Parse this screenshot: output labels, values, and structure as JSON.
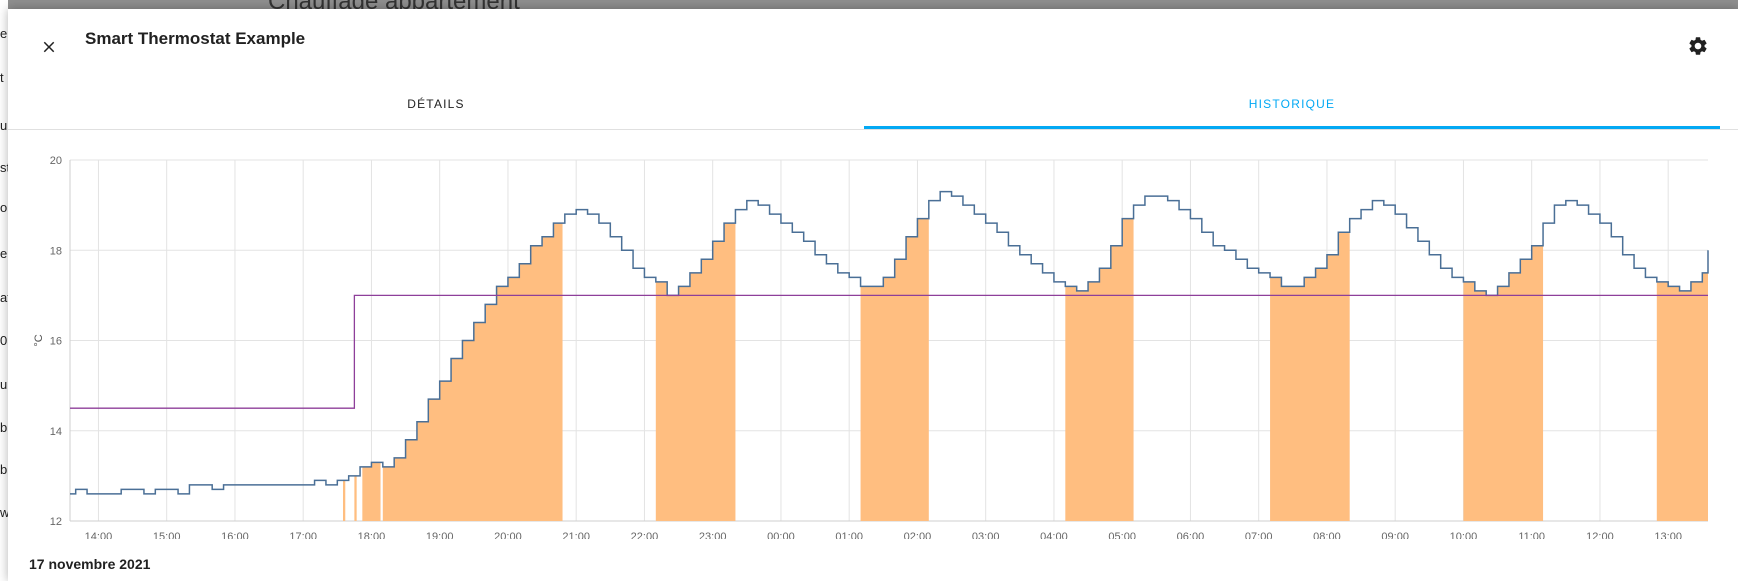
{
  "background": {
    "title": "Chauffage appartement",
    "edge_letters": [
      "e",
      "t",
      "u",
      "st",
      "o",
      "e",
      "at",
      "0",
      "u",
      "b",
      "b",
      "w"
    ]
  },
  "dialog": {
    "title": "Smart Thermostat Example",
    "close_icon": "close-icon",
    "settings_icon": "gear-icon"
  },
  "tabs": [
    {
      "label": "DÉTAILS",
      "active": false
    },
    {
      "label": "HISTORIQUE",
      "active": true
    }
  ],
  "date_label": "17 novembre 2021",
  "colors": {
    "current_temp": "#4a6f96",
    "target_temp": "#8e3f9a",
    "heating": "#ffbe80",
    "accent": "#03a9f4"
  },
  "chart_data": {
    "type": "line",
    "ylabel": "°C",
    "ylim": [
      12,
      20
    ],
    "yticks": [
      12,
      14,
      16,
      18,
      20
    ],
    "x_start": "13:35",
    "x_end": "13:35",
    "xlabels": [
      "14:00",
      "15:00",
      "16:00",
      "17:00",
      "18:00",
      "19:00",
      "20:00",
      "21:00",
      "22:00",
      "23:00",
      "00:00",
      "01:00",
      "02:00",
      "03:00",
      "04:00",
      "05:00",
      "06:00",
      "07:00",
      "08:00",
      "09:00",
      "10:00",
      "11:00",
      "12:00",
      "13:00"
    ],
    "grid": true,
    "series": [
      {
        "type": "line",
        "points": [
          [
            "13:35",
            12.6
          ],
          [
            "13:40",
            12.7
          ],
          [
            "13:50",
            12.6
          ],
          [
            "14:20",
            12.7
          ],
          [
            "14:40",
            12.6
          ],
          [
            "14:50",
            12.7
          ],
          [
            "15:10",
            12.6
          ],
          [
            "15:20",
            12.8
          ],
          [
            "15:40",
            12.7
          ],
          [
            "15:50",
            12.8
          ],
          [
            "17:10",
            12.9
          ],
          [
            "17:20",
            12.8
          ],
          [
            "17:30",
            12.9
          ],
          [
            "17:40",
            13.0
          ],
          [
            "17:50",
            13.2
          ],
          [
            "18:00",
            13.3
          ],
          [
            "18:10",
            13.2
          ],
          [
            "18:20",
            13.4
          ],
          [
            "18:30",
            13.8
          ],
          [
            "18:40",
            14.2
          ],
          [
            "18:50",
            14.7
          ],
          [
            "19:00",
            15.1
          ],
          [
            "19:10",
            15.6
          ],
          [
            "19:20",
            16.0
          ],
          [
            "19:30",
            16.4
          ],
          [
            "19:40",
            16.8
          ],
          [
            "19:50",
            17.2
          ],
          [
            "20:00",
            17.4
          ],
          [
            "20:10",
            17.7
          ],
          [
            "20:20",
            18.1
          ],
          [
            "20:30",
            18.3
          ],
          [
            "20:40",
            18.6
          ],
          [
            "20:50",
            18.8
          ],
          [
            "21:00",
            18.9
          ],
          [
            "21:10",
            18.8
          ],
          [
            "21:20",
            18.6
          ],
          [
            "21:30",
            18.3
          ],
          [
            "21:40",
            18.0
          ],
          [
            "21:50",
            17.6
          ],
          [
            "22:00",
            17.4
          ],
          [
            "22:10",
            17.3
          ],
          [
            "22:20",
            17.0
          ],
          [
            "22:30",
            17.2
          ],
          [
            "22:40",
            17.5
          ],
          [
            "22:50",
            17.8
          ],
          [
            "23:00",
            18.2
          ],
          [
            "23:10",
            18.6
          ],
          [
            "23:20",
            18.9
          ],
          [
            "23:30",
            19.1
          ],
          [
            "23:40",
            19.0
          ],
          [
            "23:50",
            18.8
          ],
          [
            "00:00",
            18.6
          ],
          [
            "00:10",
            18.4
          ],
          [
            "00:20",
            18.2
          ],
          [
            "00:30",
            17.9
          ],
          [
            "00:40",
            17.7
          ],
          [
            "00:50",
            17.5
          ],
          [
            "01:00",
            17.4
          ],
          [
            "01:10",
            17.2
          ],
          [
            "01:20",
            17.2
          ],
          [
            "01:30",
            17.4
          ],
          [
            "01:40",
            17.8
          ],
          [
            "01:50",
            18.3
          ],
          [
            "02:00",
            18.7
          ],
          [
            "02:10",
            19.1
          ],
          [
            "02:20",
            19.3
          ],
          [
            "02:30",
            19.2
          ],
          [
            "02:40",
            19.0
          ],
          [
            "02:50",
            18.8
          ],
          [
            "03:00",
            18.6
          ],
          [
            "03:10",
            18.4
          ],
          [
            "03:20",
            18.1
          ],
          [
            "03:30",
            17.9
          ],
          [
            "03:40",
            17.7
          ],
          [
            "03:50",
            17.5
          ],
          [
            "04:00",
            17.3
          ],
          [
            "04:10",
            17.2
          ],
          [
            "04:20",
            17.1
          ],
          [
            "04:30",
            17.3
          ],
          [
            "04:40",
            17.6
          ],
          [
            "04:50",
            18.1
          ],
          [
            "05:00",
            18.7
          ],
          [
            "05:10",
            19.0
          ],
          [
            "05:20",
            19.2
          ],
          [
            "05:40",
            19.1
          ],
          [
            "05:50",
            18.9
          ],
          [
            "06:00",
            18.7
          ],
          [
            "06:10",
            18.4
          ],
          [
            "06:20",
            18.1
          ],
          [
            "06:30",
            18.0
          ],
          [
            "06:40",
            17.8
          ],
          [
            "06:50",
            17.6
          ],
          [
            "07:00",
            17.5
          ],
          [
            "07:10",
            17.4
          ],
          [
            "07:20",
            17.2
          ],
          [
            "07:40",
            17.4
          ],
          [
            "07:50",
            17.6
          ],
          [
            "08:00",
            17.9
          ],
          [
            "08:10",
            18.4
          ],
          [
            "08:20",
            18.7
          ],
          [
            "08:30",
            18.9
          ],
          [
            "08:40",
            19.1
          ],
          [
            "08:50",
            19.0
          ],
          [
            "09:00",
            18.8
          ],
          [
            "09:10",
            18.5
          ],
          [
            "09:20",
            18.2
          ],
          [
            "09:30",
            17.9
          ],
          [
            "09:40",
            17.6
          ],
          [
            "09:50",
            17.4
          ],
          [
            "10:00",
            17.3
          ],
          [
            "10:10",
            17.1
          ],
          [
            "10:20",
            17.0
          ],
          [
            "10:30",
            17.2
          ],
          [
            "10:40",
            17.5
          ],
          [
            "10:50",
            17.8
          ],
          [
            "11:00",
            18.1
          ],
          [
            "11:10",
            18.6
          ],
          [
            "11:20",
            19.0
          ],
          [
            "11:30",
            19.1
          ],
          [
            "11:40",
            19.0
          ],
          [
            "11:50",
            18.8
          ],
          [
            "12:00",
            18.6
          ],
          [
            "12:10",
            18.3
          ],
          [
            "12:20",
            17.9
          ],
          [
            "12:30",
            17.6
          ],
          [
            "12:40",
            17.4
          ],
          [
            "12:50",
            17.3
          ],
          [
            "13:00",
            17.2
          ],
          [
            "13:10",
            17.1
          ],
          [
            "13:20",
            17.3
          ],
          [
            "13:30",
            17.5
          ],
          [
            "13:35",
            18.0
          ]
        ]
      },
      {
        "type": "line",
        "points": [
          [
            "13:35",
            14.5
          ],
          [
            "17:45",
            14.5
          ],
          [
            "17:45",
            17.0
          ],
          [
            "13:35",
            17.0
          ]
        ]
      }
    ],
    "heating_periods": [
      [
        "17:35",
        "17:37"
      ],
      [
        "17:45",
        "17:47"
      ],
      [
        "17:52",
        "18:08"
      ],
      [
        "18:10",
        "20:48"
      ],
      [
        "22:10",
        "23:20"
      ],
      [
        "01:10",
        "02:10"
      ],
      [
        "04:10",
        "05:10"
      ],
      [
        "07:10",
        "08:20"
      ],
      [
        "10:00",
        "11:10"
      ],
      [
        "12:50",
        "13:35"
      ]
    ]
  }
}
